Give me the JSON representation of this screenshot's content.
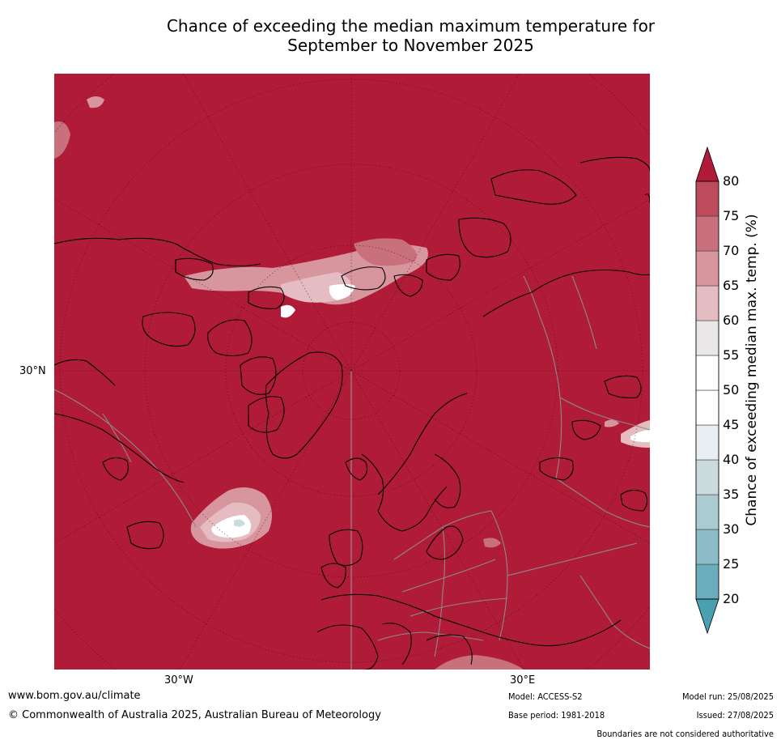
{
  "title": {
    "line1": "Chance of exceeding the median maximum temperature for",
    "line2": "September to November 2025"
  },
  "map": {
    "projection": "north-polar-stereographic",
    "background_color": "#b01b38",
    "lat_label": "30°N",
    "lon_labels": {
      "west": "30°W",
      "east": "30°E"
    },
    "features": [
      "coastlines",
      "country-borders",
      "graticule"
    ],
    "dominant_category": "80+"
  },
  "colorbar": {
    "title": "Chance of exceeding median max. temp. (%)",
    "ticks": [
      "20",
      "25",
      "30",
      "35",
      "40",
      "45",
      "50",
      "55",
      "60",
      "65",
      "70",
      "75",
      "80"
    ],
    "bins": [
      {
        "range": "<20",
        "color": "#4a9fb0"
      },
      {
        "range": "20-25",
        "color": "#6aaebd"
      },
      {
        "range": "25-30",
        "color": "#8cbcc8"
      },
      {
        "range": "30-35",
        "color": "#abcbd2"
      },
      {
        "range": "35-40",
        "color": "#cbdadd"
      },
      {
        "range": "40-45",
        "color": "#e8eef1"
      },
      {
        "range": "45-50",
        "color": "#ffffff"
      },
      {
        "range": "50-55",
        "color": "#ffffff"
      },
      {
        "range": "55-60",
        "color": "#e9e7e8"
      },
      {
        "range": "60-65",
        "color": "#e5bcc2"
      },
      {
        "range": "65-70",
        "color": "#d7959e"
      },
      {
        "range": "70-75",
        "color": "#c8707b"
      },
      {
        "range": "75-80",
        "color": "#bd4b5c"
      },
      {
        "range": ">80",
        "color": "#b01b38"
      }
    ]
  },
  "footer": {
    "url": "www.bom.gov.au/climate",
    "copyright": "© Commonwealth of Australia 2025, Australian Bureau of Meteorology",
    "model": "Model: ACCESS-S2",
    "base_period": "Base period: 1981-2018",
    "model_run": "Model run: 25/08/2025",
    "issued": "Issued: 27/08/2025",
    "disclaimer": "Boundaries are not considered authoritative"
  }
}
